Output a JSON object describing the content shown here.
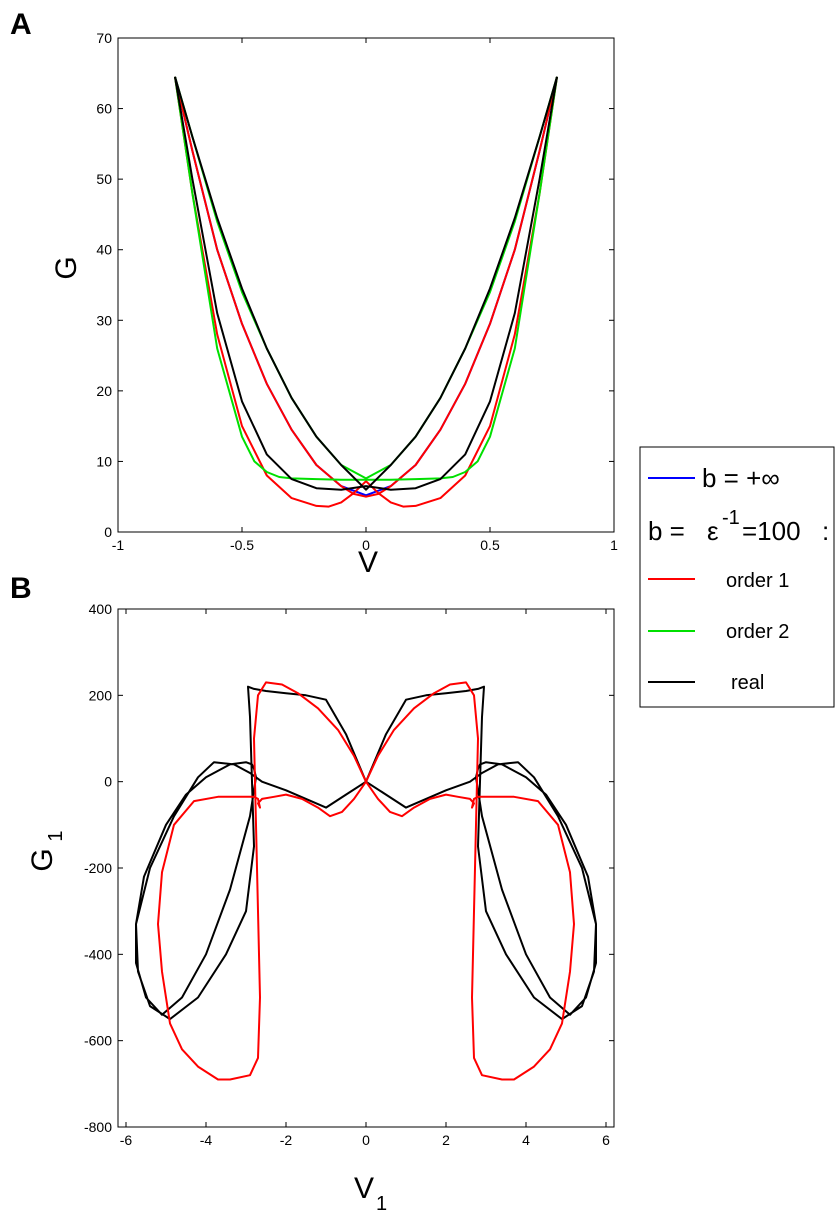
{
  "figure": {
    "panelA_label": "A",
    "panelB_label": "B"
  },
  "legend": {
    "header_b_inf": "b = +∞",
    "header_b_eps": "b =",
    "header_eps": "ε",
    "header_eps_exp": "-1",
    "header_eps_val": "=100",
    "header_colon": ":",
    "entries": [
      {
        "label": "order 1",
        "color": "#ff0000"
      },
      {
        "label": "order 2",
        "color": "#00e000"
      },
      {
        "label": "real",
        "color": "#000000"
      }
    ],
    "binf_color": "#0000ff"
  },
  "chart_data": [
    {
      "type": "line",
      "panel": "A",
      "xlabel": "V",
      "ylabel": "G",
      "xlim": [
        -1,
        1
      ],
      "ylim": [
        0,
        70
      ],
      "xticks": [
        "-1",
        "-0.5",
        "0",
        "0.5",
        "1"
      ],
      "xtick_values": [
        -1,
        -0.5,
        0,
        0.5,
        1
      ],
      "yticks": [
        "0",
        "10",
        "20",
        "30",
        "40",
        "50",
        "60",
        "70"
      ],
      "ytick_values": [
        0,
        10,
        20,
        30,
        40,
        50,
        60,
        70
      ],
      "grid": false,
      "series": [
        {
          "name": "b = +∞",
          "color": "#0000ff",
          "x": [
            -0.77,
            -0.7,
            -0.6,
            -0.5,
            -0.4,
            -0.3,
            -0.2,
            -0.1,
            0,
            0.1,
            0.2,
            0.3,
            0.4,
            0.5,
            0.6,
            0.7,
            0.77
          ],
          "y": [
            64.5,
            54,
            40,
            29.5,
            21,
            14.5,
            9.5,
            6.5,
            5.2,
            6.5,
            9.5,
            14.5,
            21,
            29.5,
            40,
            54,
            64.5
          ]
        },
        {
          "name": "order 1",
          "color": "#ff0000",
          "x": [
            -0.77,
            -0.7,
            -0.6,
            -0.5,
            -0.4,
            -0.3,
            -0.2,
            -0.15,
            -0.1,
            -0.05,
            0,
            0.05,
            0.1,
            0.15,
            0.2,
            0.3,
            0.4,
            0.5,
            0.6,
            0.7,
            0.77
          ],
          "y": [
            64.5,
            48,
            28,
            15,
            8,
            4.8,
            3.7,
            3.6,
            4.2,
            5.5,
            7.2,
            5.5,
            4.2,
            3.6,
            3.7,
            4.8,
            8,
            15,
            28,
            48,
            64.5
          ]
        },
        {
          "name": "order 1",
          "color": "#ff0000",
          "x": [
            -0.77,
            -0.7,
            -0.6,
            -0.5,
            -0.4,
            -0.3,
            -0.2,
            -0.1,
            -0.05,
            0,
            0.05,
            0.1,
            0.2,
            0.3,
            0.4,
            0.5,
            0.6,
            0.7,
            0.77
          ],
          "y": [
            64.5,
            54,
            40,
            29.5,
            21,
            14.5,
            9.5,
            6.5,
            5.4,
            5,
            5.4,
            6.5,
            9.5,
            14.5,
            21,
            29.5,
            40,
            54,
            64.5
          ]
        },
        {
          "name": "order 2",
          "color": "#00e000",
          "x": [
            -0.77,
            -0.7,
            -0.6,
            -0.5,
            -0.45,
            -0.4,
            -0.35,
            -0.3,
            -0.2,
            -0.1,
            0,
            0.1,
            0.2,
            0.3,
            0.35,
            0.4,
            0.45,
            0.5,
            0.6,
            0.7,
            0.77
          ],
          "y": [
            64.5,
            48,
            26,
            13.5,
            10,
            8.5,
            7.8,
            7.6,
            7.5,
            7.4,
            7.4,
            7.4,
            7.5,
            7.6,
            7.8,
            8.5,
            10,
            13.5,
            26,
            48,
            64.5
          ]
        },
        {
          "name": "order 2",
          "color": "#00e000",
          "x": [
            -0.77,
            -0.7,
            -0.6,
            -0.5,
            -0.4,
            -0.3,
            -0.2,
            -0.1,
            0,
            0.1,
            0.2,
            0.3,
            0.4,
            0.5,
            0.6,
            0.7,
            0.77
          ],
          "y": [
            64.5,
            56,
            44,
            34,
            26,
            19,
            13.5,
            9.5,
            7.6,
            9.5,
            13.5,
            19,
            26,
            34,
            44,
            56,
            64.5
          ]
        },
        {
          "name": "real",
          "color": "#000000",
          "x": [
            -0.77,
            -0.7,
            -0.6,
            -0.5,
            -0.4,
            -0.3,
            -0.2,
            -0.1,
            0,
            0.1,
            0.2,
            0.3,
            0.4,
            0.5,
            0.6,
            0.7,
            0.77
          ],
          "y": [
            64.5,
            56,
            44.5,
            34.5,
            26,
            19,
            13.5,
            9.5,
            6,
            9.5,
            13.5,
            19,
            26,
            34.5,
            44.5,
            56,
            64.5
          ]
        },
        {
          "name": "real",
          "color": "#000000",
          "x": [
            -0.77,
            -0.7,
            -0.6,
            -0.5,
            -0.4,
            -0.3,
            -0.2,
            -0.1,
            0,
            0.1,
            0.2,
            0.3,
            0.4,
            0.5,
            0.6,
            0.7,
            0.77
          ],
          "y": [
            64.5,
            50,
            31,
            18.5,
            11,
            7.5,
            6.2,
            6,
            6.5,
            6,
            6.2,
            7.5,
            11,
            18.5,
            31,
            50,
            64.5
          ]
        }
      ]
    },
    {
      "type": "line",
      "panel": "B",
      "xlabel": "V",
      "xlabel_sub": "1",
      "ylabel": "G",
      "ylabel_sub": "1",
      "xlim": [
        -6.2,
        6.2
      ],
      "ylim": [
        -800,
        400
      ],
      "xticks": [
        "-6",
        "-4",
        "-2",
        "0",
        "2",
        "4",
        "6"
      ],
      "xtick_values": [
        -6,
        -4,
        -2,
        0,
        2,
        4,
        6
      ],
      "yticks": [
        "-800",
        "-600",
        "-400",
        "-200",
        "0",
        "200",
        "400"
      ],
      "ytick_values": [
        -800,
        -600,
        -400,
        -200,
        0,
        200,
        400
      ],
      "grid": false,
      "series": [
        {
          "name": "real",
          "color": "#000000",
          "x": [
            0,
            0.5,
            1,
            1.5,
            2,
            2.5,
            2.8,
            2.95,
            2.9,
            2.85,
            2.8,
            3.0,
            3.5,
            4.2,
            4.9,
            5.4,
            5.7,
            5.75,
            5.55,
            5.0,
            4.5,
            4.0,
            3.4,
            3.0,
            2.85,
            2.8,
            2.75,
            2.9,
            3.4,
            4.0,
            4.6,
            5.1,
            5.5,
            5.75,
            5.75,
            5.4,
            4.8,
            4.2,
            3.8,
            3.3,
            2.9,
            2.6,
            2.0,
            1.5,
            1.0,
            0.5,
            0
          ],
          "y": [
            0,
            110,
            190,
            200,
            205,
            210,
            215,
            220,
            150,
            0,
            -150,
            -300,
            -400,
            -500,
            -550,
            -520,
            -440,
            -330,
            -220,
            -100,
            -30,
            10,
            40,
            45,
            40,
            30,
            10,
            -80,
            -250,
            -400,
            -500,
            -540,
            -500,
            -420,
            -330,
            -200,
            -80,
            10,
            45,
            40,
            20,
            0,
            -20,
            -40,
            -60,
            -30,
            0
          ]
        },
        {
          "name": "real",
          "color": "#000000",
          "x": [
            0,
            -0.5,
            -1,
            -1.5,
            -2,
            -2.5,
            -2.8,
            -2.95,
            -2.9,
            -2.85,
            -2.8,
            -3.0,
            -3.5,
            -4.2,
            -4.9,
            -5.4,
            -5.7,
            -5.75,
            -5.55,
            -5.0,
            -4.5,
            -4.0,
            -3.4,
            -3.0,
            -2.85,
            -2.8,
            -2.75,
            -2.9,
            -3.4,
            -4.0,
            -4.6,
            -5.1,
            -5.5,
            -5.75,
            -5.75,
            -5.4,
            -4.8,
            -4.2,
            -3.8,
            -3.3,
            -2.9,
            -2.6,
            -2.0,
            -1.5,
            -1.0,
            -0.5,
            0
          ],
          "y": [
            0,
            110,
            190,
            200,
            205,
            210,
            215,
            220,
            150,
            0,
            -150,
            -300,
            -400,
            -500,
            -550,
            -520,
            -440,
            -330,
            -220,
            -100,
            -30,
            10,
            40,
            45,
            40,
            30,
            10,
            -80,
            -250,
            -400,
            -500,
            -540,
            -500,
            -420,
            -330,
            -200,
            -80,
            10,
            45,
            40,
            20,
            0,
            -20,
            -40,
            -60,
            -30,
            0
          ]
        },
        {
          "name": "order 1",
          "color": "#ff0000",
          "x": [
            0,
            0.3,
            0.7,
            1.2,
            1.7,
            2.1,
            2.5,
            2.7,
            2.8,
            2.75,
            2.7,
            2.65,
            2.7,
            2.9,
            3.4,
            3.7,
            4.2,
            4.6,
            4.9,
            5.1,
            5.2,
            5.1,
            4.8,
            4.3,
            3.7,
            3.2,
            2.8,
            2.7,
            2.65,
            2.7,
            2.6,
            2.3,
            2.0,
            1.6,
            1.2,
            0.9,
            0.6,
            0.3,
            0
          ],
          "y": [
            0,
            60,
            120,
            170,
            205,
            225,
            230,
            200,
            100,
            -100,
            -300,
            -500,
            -640,
            -680,
            -690,
            -690,
            -660,
            -620,
            -560,
            -440,
            -330,
            -210,
            -100,
            -45,
            -35,
            -35,
            -35,
            -40,
            -60,
            -50,
            -40,
            -35,
            -30,
            -40,
            -60,
            -80,
            -70,
            -40,
            0
          ]
        },
        {
          "name": "order 1",
          "color": "#ff0000",
          "x": [
            0,
            -0.3,
            -0.7,
            -1.2,
            -1.7,
            -2.1,
            -2.5,
            -2.7,
            -2.8,
            -2.75,
            -2.7,
            -2.65,
            -2.7,
            -2.9,
            -3.4,
            -3.7,
            -4.2,
            -4.6,
            -4.9,
            -5.1,
            -5.2,
            -5.1,
            -4.8,
            -4.3,
            -3.7,
            -3.2,
            -2.8,
            -2.7,
            -2.65,
            -2.7,
            -2.6,
            -2.3,
            -2.0,
            -1.6,
            -1.2,
            -0.9,
            -0.6,
            -0.3,
            0
          ],
          "y": [
            0,
            60,
            120,
            170,
            205,
            225,
            230,
            200,
            100,
            -100,
            -300,
            -500,
            -640,
            -680,
            -690,
            -690,
            -660,
            -620,
            -560,
            -440,
            -330,
            -210,
            -100,
            -45,
            -35,
            -35,
            -35,
            -40,
            -60,
            -50,
            -40,
            -35,
            -30,
            -40,
            -60,
            -80,
            -70,
            -40,
            0
          ]
        }
      ]
    }
  ]
}
